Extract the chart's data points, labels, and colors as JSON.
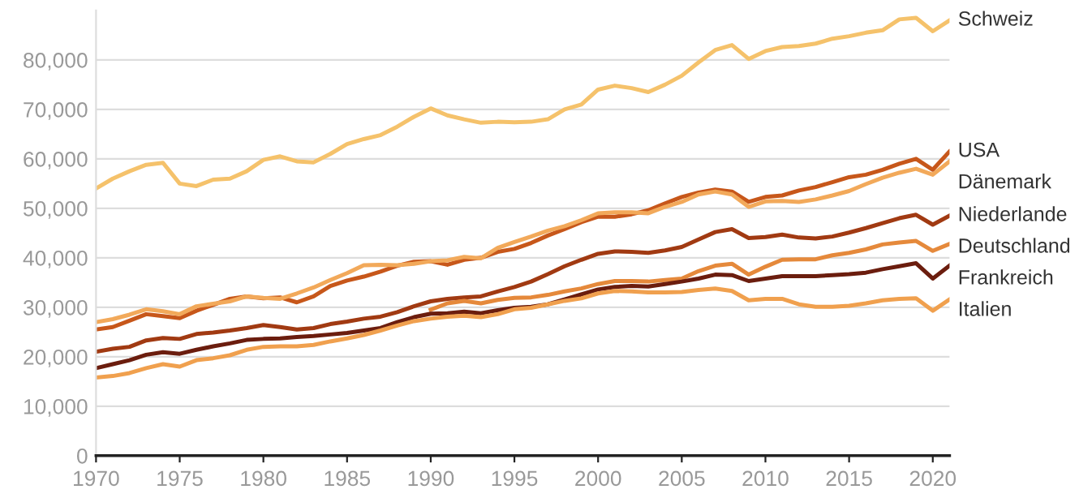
{
  "chart_data": {
    "type": "line",
    "xlim": [
      1970,
      2021
    ],
    "xticks": [
      1970,
      1975,
      1980,
      1985,
      1990,
      1995,
      2000,
      2005,
      2010,
      2015,
      2020
    ],
    "yticks": [
      {
        "value": 0,
        "label": "0"
      },
      {
        "value": 10000,
        "label": "10,000"
      },
      {
        "value": 20000,
        "label": "20,000"
      },
      {
        "value": 30000,
        "label": "30,000"
      },
      {
        "value": 40000,
        "label": "40,000"
      },
      {
        "value": 50000,
        "label": "50,000"
      },
      {
        "value": 60000,
        "label": "60,000"
      },
      {
        "value": 70000,
        "label": "70,000"
      },
      {
        "value": 80000,
        "label": "80,000"
      }
    ],
    "ylim": [
      0,
      90000
    ],
    "grid": "y",
    "legend": false,
    "marker": "none",
    "line_style": "solid",
    "x": [
      1970,
      1971,
      1972,
      1973,
      1974,
      1975,
      1976,
      1977,
      1978,
      1979,
      1980,
      1981,
      1982,
      1983,
      1984,
      1985,
      1986,
      1987,
      1988,
      1989,
      1990,
      1991,
      1992,
      1993,
      1994,
      1995,
      1996,
      1997,
      1998,
      1999,
      2000,
      2001,
      2002,
      2003,
      2004,
      2005,
      2006,
      2007,
      2008,
      2009,
      2010,
      2011,
      2012,
      2013,
      2014,
      2015,
      2016,
      2017,
      2018,
      2019,
      2020,
      2021
    ],
    "series": [
      {
        "name": "Schweiz",
        "color": "#f5c26b",
        "values": [
          54000,
          56000,
          57500,
          58800,
          59200,
          55000,
          54500,
          55800,
          56000,
          57500,
          59800,
          60500,
          59500,
          59300,
          61000,
          63000,
          64000,
          64800,
          66500,
          68500,
          70200,
          68800,
          68000,
          67300,
          67500,
          67400,
          67500,
          68000,
          70000,
          71000,
          74000,
          74800,
          74300,
          73500,
          75000,
          76800,
          79500,
          82000,
          83000,
          80200,
          81800,
          82600,
          82800,
          83300,
          84300,
          84800,
          85500,
          86000,
          88200,
          88500,
          85800,
          88000
        ]
      },
      {
        "name": "USA",
        "color": "#c7571a",
        "values": [
          25500,
          26000,
          27300,
          28600,
          28200,
          27800,
          29300,
          30500,
          31700,
          32200,
          31800,
          32000,
          31000,
          32200,
          34300,
          35400,
          36200,
          37200,
          38400,
          39200,
          39300,
          38600,
          39600,
          40000,
          41200,
          41800,
          43000,
          44500,
          45800,
          47200,
          48300,
          48300,
          48800,
          49600,
          51000,
          52300,
          53200,
          53800,
          53400,
          51300,
          52300,
          52600,
          53600,
          54300,
          55300,
          56300,
          56800,
          57800,
          59000,
          60000,
          57800,
          61500
        ]
      },
      {
        "name": "Dänemark",
        "color": "#f2a95a",
        "values": [
          27000,
          27600,
          28500,
          29600,
          29200,
          28600,
          30200,
          30700,
          31200,
          32200,
          31900,
          31700,
          32800,
          34000,
          35500,
          36900,
          38500,
          38600,
          38500,
          38800,
          39300,
          39500,
          40200,
          39900,
          42000,
          43200,
          44300,
          45500,
          46400,
          47600,
          49000,
          49200,
          49200,
          49000,
          50300,
          51300,
          52800,
          53400,
          52800,
          50300,
          51400,
          51500,
          51300,
          51800,
          52600,
          53500,
          54900,
          56200,
          57200,
          58000,
          56800,
          59500
        ]
      },
      {
        "name": "Niederlande",
        "color": "#a13a12",
        "values": [
          21000,
          21600,
          22000,
          23300,
          23800,
          23600,
          24600,
          24900,
          25300,
          25800,
          26400,
          26000,
          25500,
          25800,
          26600,
          27100,
          27700,
          28100,
          29000,
          30200,
          31200,
          31700,
          32000,
          32200,
          33200,
          34100,
          35200,
          36700,
          38300,
          39600,
          40800,
          41300,
          41200,
          41000,
          41500,
          42200,
          43700,
          45200,
          45800,
          44000,
          44200,
          44700,
          44100,
          43900,
          44300,
          45100,
          46000,
          47000,
          48000,
          48700,
          46700,
          48500
        ]
      },
      {
        "name": "Deutschland",
        "color": "#e5893b",
        "values": [
          null,
          null,
          null,
          null,
          null,
          null,
          null,
          null,
          null,
          null,
          null,
          null,
          null,
          null,
          null,
          null,
          null,
          null,
          null,
          null,
          29500,
          30800,
          31300,
          30800,
          31500,
          31900,
          32000,
          32500,
          33200,
          33800,
          34700,
          35300,
          35300,
          35200,
          35500,
          35800,
          37300,
          38400,
          38800,
          36600,
          38200,
          39600,
          39700,
          39700,
          40500,
          41000,
          41700,
          42700,
          43100,
          43400,
          41400,
          42800
        ]
      },
      {
        "name": "Frankreich",
        "color": "#6b1d0e",
        "values": [
          17700,
          18500,
          19300,
          20400,
          20900,
          20600,
          21400,
          22100,
          22700,
          23400,
          23600,
          23700,
          24000,
          24200,
          24500,
          24800,
          25300,
          25800,
          27000,
          28000,
          28700,
          28800,
          29100,
          28800,
          29400,
          29900,
          30100,
          30600,
          31600,
          32600,
          33600,
          34100,
          34300,
          34200,
          34700,
          35200,
          35800,
          36600,
          36500,
          35300,
          35800,
          36300,
          36300,
          36300,
          36500,
          36700,
          37000,
          37700,
          38300,
          38900,
          35800,
          38400
        ]
      },
      {
        "name": "Italien",
        "color": "#f0a04e",
        "values": [
          15800,
          16100,
          16700,
          17700,
          18500,
          18000,
          19300,
          19700,
          20300,
          21400,
          22000,
          22100,
          22100,
          22400,
          23100,
          23700,
          24400,
          25300,
          26300,
          27200,
          27700,
          28100,
          28300,
          28000,
          28600,
          29600,
          29900,
          30600,
          31300,
          31800,
          32800,
          33300,
          33200,
          33000,
          33000,
          33100,
          33500,
          33800,
          33300,
          31400,
          31700,
          31700,
          30600,
          30100,
          30100,
          30300,
          30800,
          31400,
          31700,
          31800,
          29300,
          31600
        ]
      }
    ]
  }
}
